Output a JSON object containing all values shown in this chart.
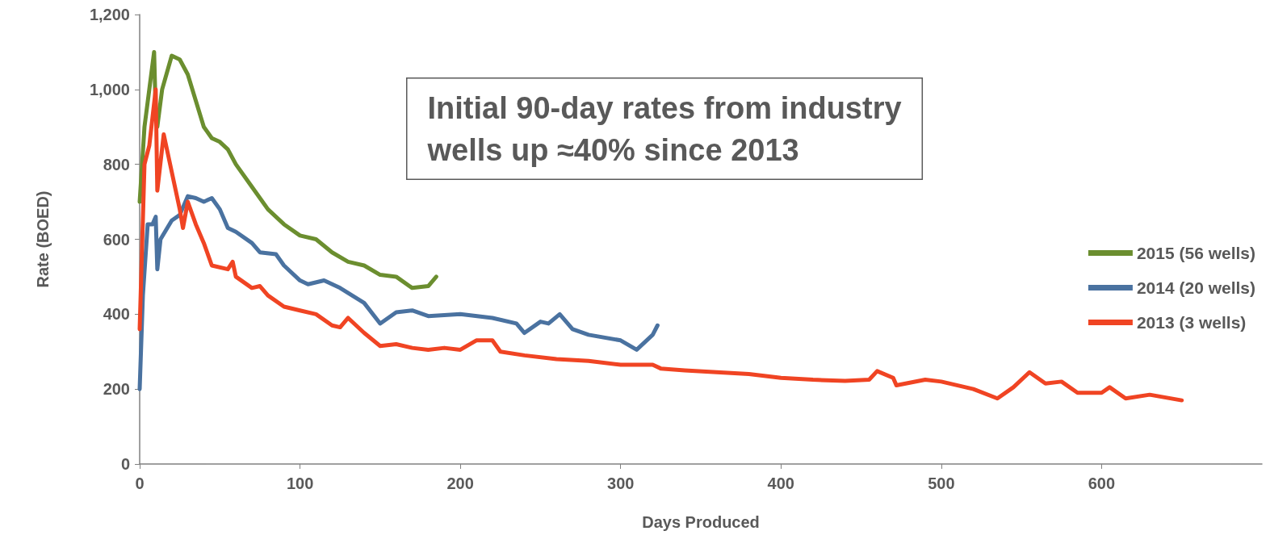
{
  "chart_data": {
    "type": "line",
    "xlabel": "Days Produced",
    "ylabel": "Rate (BOED)",
    "annotations": [
      "Initial 90-day rates from industry\nwells up ≈40% since 2013"
    ],
    "xlim": [
      0,
      700
    ],
    "xticks": [
      0,
      100,
      200,
      300,
      400,
      500,
      600
    ],
    "ylim": [
      0,
      1200
    ],
    "yticks": [
      0,
      200,
      400,
      600,
      800,
      {
        "value": 1000,
        "label": "1,000"
      },
      {
        "value": 1200,
        "label": "1,200"
      }
    ],
    "grid": false,
    "legend": "right",
    "marker": "none",
    "line_style": "solid",
    "series": [
      {
        "name": "2015 (56 wells)",
        "color": "#6b8e2f",
        "x": [
          0,
          3,
          6,
          9,
          10,
          11,
          14,
          20,
          25,
          30,
          35,
          40,
          45,
          50,
          55,
          60,
          70,
          80,
          90,
          100,
          110,
          120,
          130,
          140,
          150,
          160,
          170,
          180,
          185
        ],
        "values": [
          700,
          900,
          1000,
          1100,
          940,
          900,
          1000,
          1090,
          1080,
          1040,
          970,
          900,
          870,
          860,
          840,
          800,
          740,
          680,
          640,
          610,
          600,
          565,
          540,
          530,
          505,
          500,
          470,
          475,
          500
        ]
      },
      {
        "name": "2014 (20 wells)",
        "color": "#4a72a0",
        "x": [
          0,
          2,
          5,
          8,
          10,
          11,
          13,
          20,
          25,
          30,
          35,
          40,
          45,
          50,
          55,
          60,
          70,
          75,
          85,
          90,
          100,
          105,
          115,
          125,
          140,
          150,
          160,
          170,
          180,
          200,
          220,
          235,
          240,
          250,
          255,
          262,
          270,
          280,
          300,
          310,
          320,
          323
        ],
        "values": [
          200,
          450,
          640,
          640,
          660,
          520,
          600,
          650,
          665,
          715,
          710,
          700,
          710,
          680,
          630,
          620,
          590,
          565,
          560,
          530,
          490,
          480,
          490,
          470,
          430,
          375,
          405,
          410,
          395,
          400,
          390,
          375,
          350,
          380,
          375,
          400,
          360,
          345,
          330,
          305,
          345,
          370
        ]
      },
      {
        "name": "2013 (3 wells)",
        "color": "#f04423",
        "x": [
          0,
          3,
          6,
          10,
          11,
          15,
          20,
          25,
          27,
          30,
          35,
          40,
          45,
          55,
          58,
          60,
          70,
          75,
          80,
          90,
          100,
          110,
          120,
          125,
          130,
          140,
          150,
          160,
          170,
          180,
          190,
          200,
          210,
          220,
          225,
          240,
          260,
          280,
          300,
          320,
          325,
          340,
          360,
          380,
          400,
          420,
          440,
          455,
          460,
          470,
          472,
          490,
          500,
          520,
          535,
          545,
          555,
          565,
          575,
          585,
          600,
          605,
          615,
          630,
          650
        ],
        "values": [
          360,
          800,
          850,
          1000,
          730,
          880,
          780,
          680,
          630,
          700,
          640,
          590,
          530,
          520,
          540,
          500,
          470,
          475,
          450,
          420,
          410,
          400,
          370,
          365,
          390,
          350,
          315,
          320,
          310,
          305,
          310,
          305,
          330,
          330,
          300,
          290,
          280,
          275,
          265,
          265,
          255,
          250,
          245,
          240,
          230,
          225,
          222,
          225,
          248,
          230,
          210,
          225,
          220,
          200,
          175,
          205,
          245,
          215,
          220,
          190,
          190,
          205,
          175,
          185,
          170
        ]
      }
    ]
  }
}
